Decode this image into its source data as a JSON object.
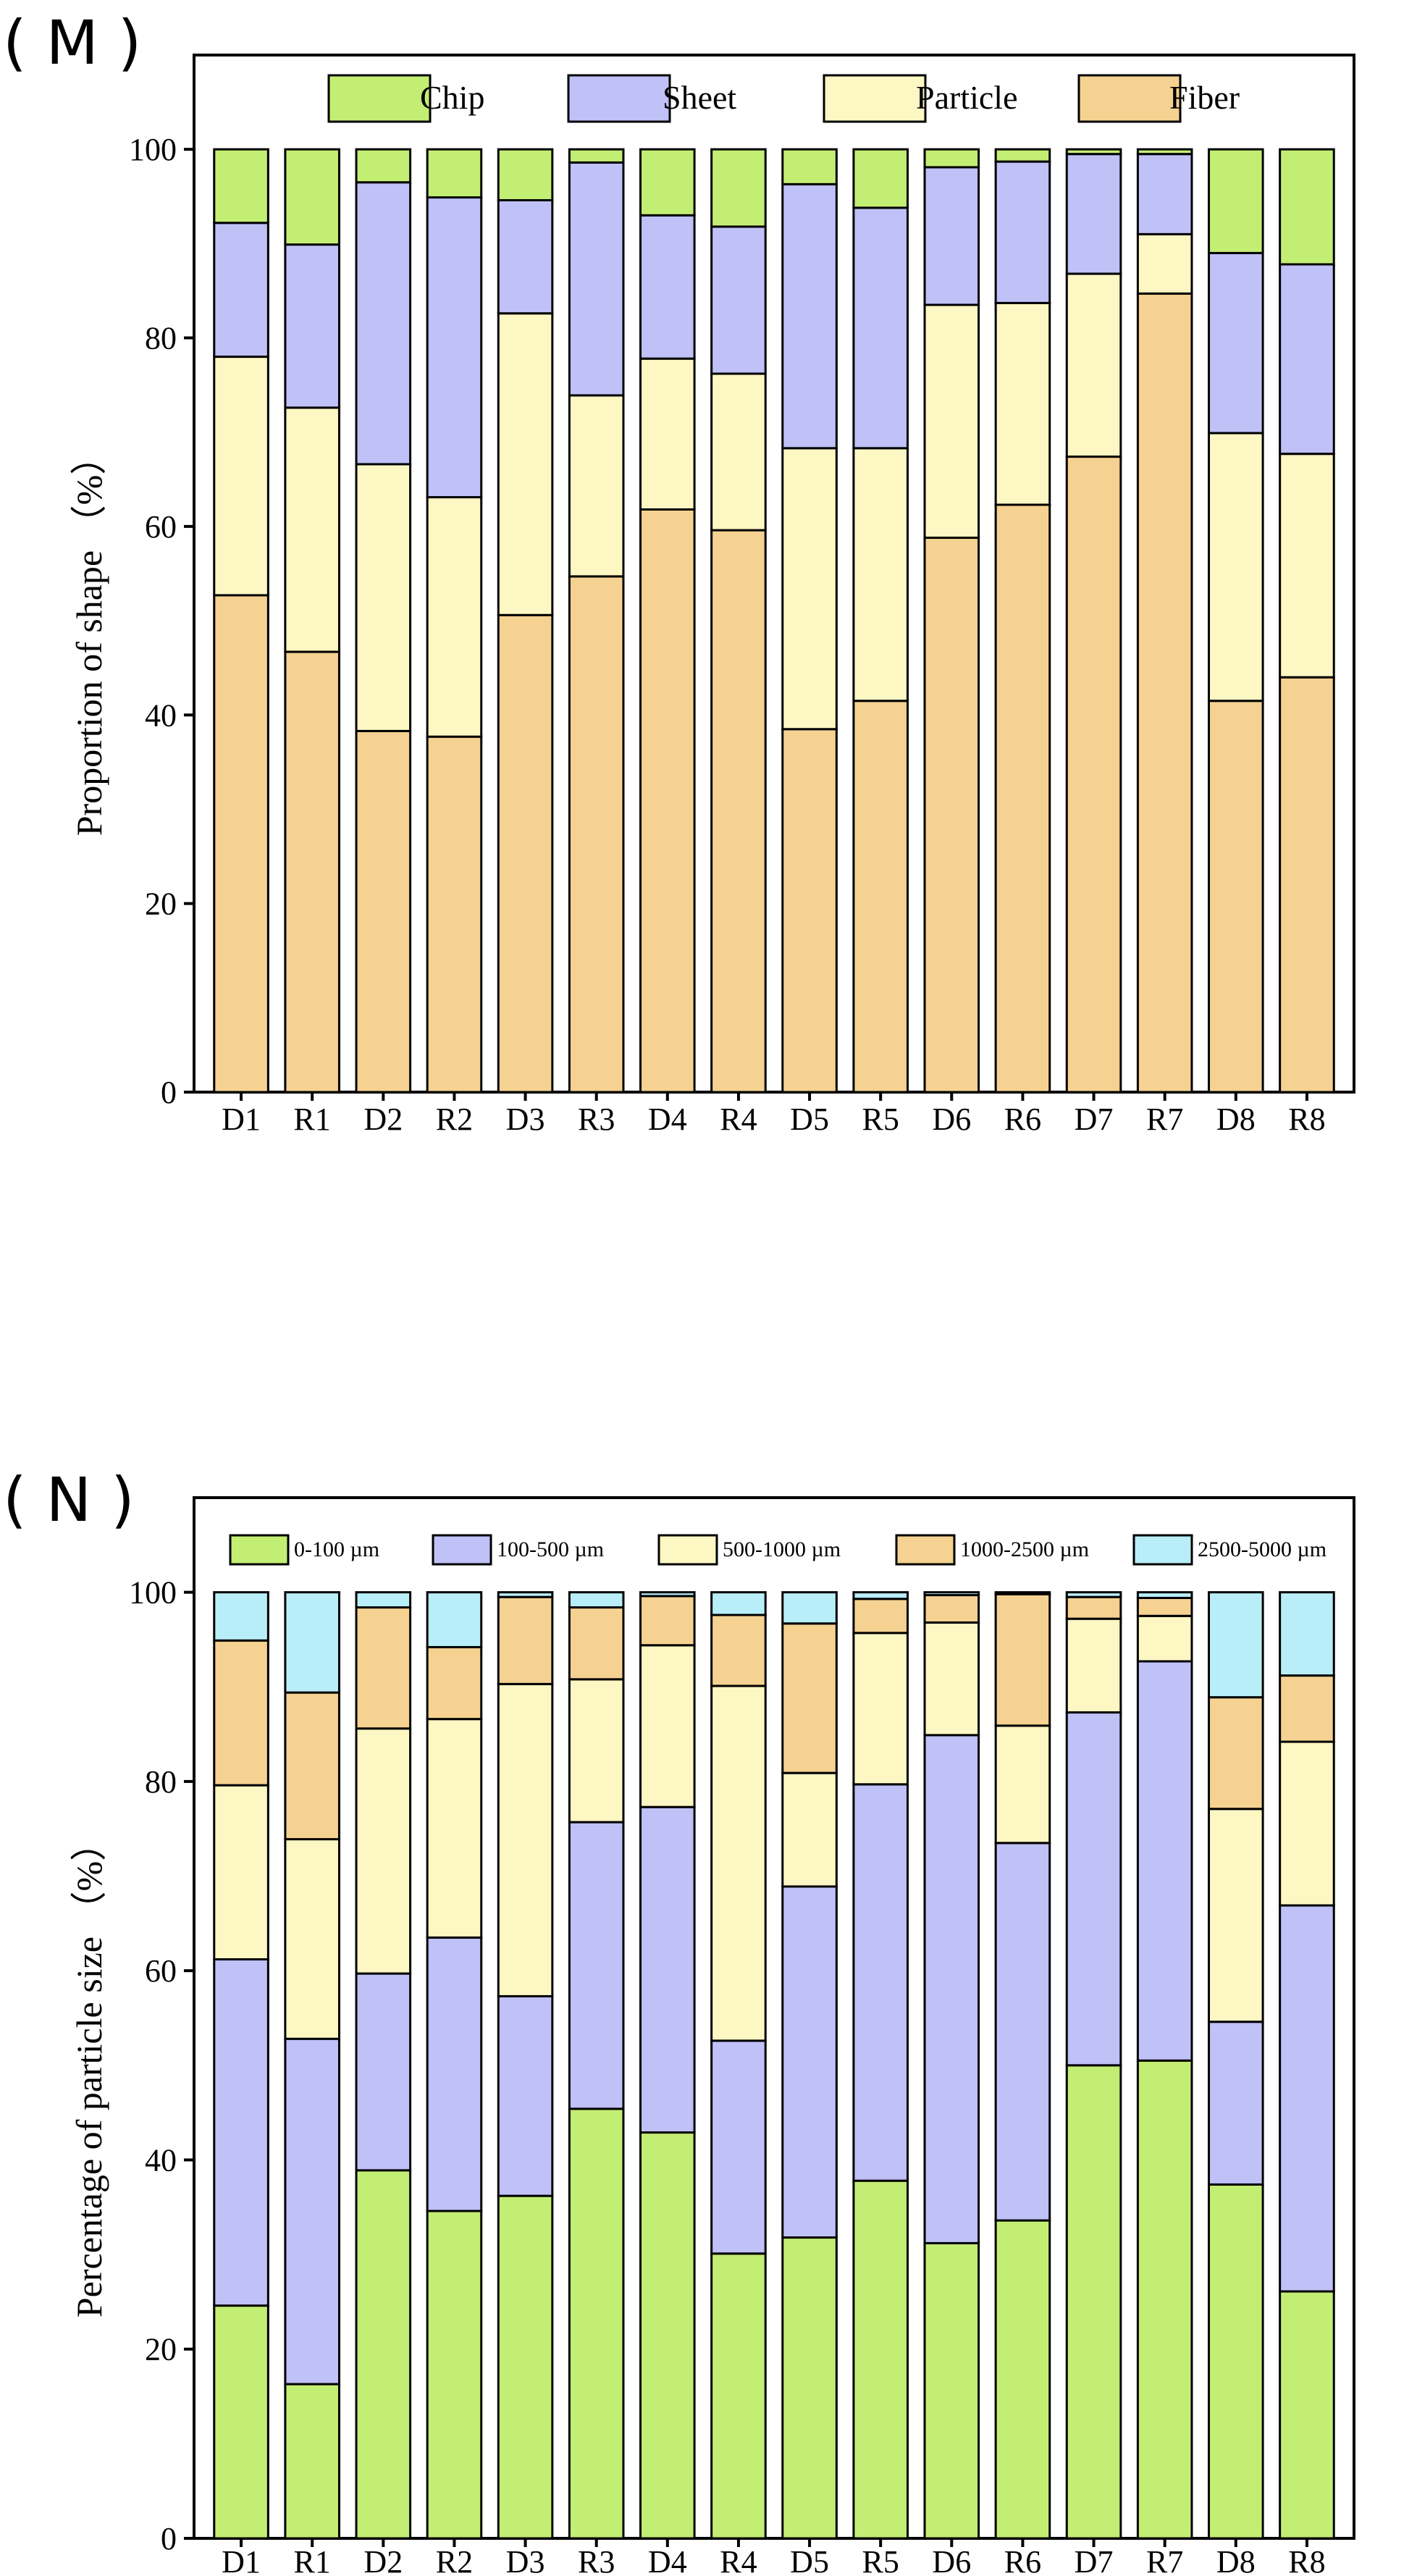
{
  "charts": [
    {
      "panel_label": "( M )",
      "chart_data": {
        "type": "bar",
        "stacked": true,
        "title": "",
        "xlabel": "",
        "ylabel": "Proportion of shape （%）",
        "ylim": [
          0,
          110
        ],
        "yticks": [
          0,
          20,
          40,
          60,
          80,
          100
        ],
        "ytick_labels": [
          "0",
          "20",
          "40",
          "60",
          "80",
          "100"
        ],
        "legend_position": "top",
        "categories": [
          "D1",
          "R1",
          "D2",
          "R2",
          "D3",
          "R3",
          "D4",
          "R4",
          "D5",
          "R5",
          "D6",
          "R6",
          "D7",
          "R7",
          "D8",
          "R8"
        ],
        "legend_order": [
          "Chip",
          "Sheet",
          "Particle",
          "Fiber"
        ],
        "series": [
          {
            "name": "Fiber",
            "color": "#F5D291",
            "values": [
              52.7,
              46.7,
              38.3,
              37.7,
              50.6,
              54.7,
              61.8,
              59.6,
              38.5,
              41.5,
              58.8,
              62.3,
              67.4,
              84.7,
              41.5,
              44.0
            ]
          },
          {
            "name": "Particle",
            "color": "#FDF7C4",
            "values": [
              25.3,
              25.9,
              28.3,
              25.4,
              32.0,
              19.2,
              16.0,
              16.6,
              29.8,
              26.8,
              24.7,
              21.4,
              19.4,
              6.3,
              28.4,
              23.7
            ]
          },
          {
            "name": "Sheet",
            "color": "#BFC1F7",
            "values": [
              14.2,
              17.3,
              29.9,
              31.8,
              12.0,
              24.7,
              15.2,
              15.6,
              28.0,
              25.5,
              14.6,
              15.0,
              12.7,
              8.5,
              19.1,
              20.1
            ]
          },
          {
            "name": "Chip",
            "color": "#C3EE74",
            "values": [
              7.8,
              10.1,
              3.5,
              5.1,
              5.4,
              1.4,
              7.0,
              8.2,
              3.7,
              6.2,
              1.9,
              1.3,
              0.5,
              0.5,
              11.0,
              12.2
            ]
          }
        ]
      }
    },
    {
      "panel_label": "( N )",
      "chart_data": {
        "type": "bar",
        "stacked": true,
        "title": "",
        "xlabel": "",
        "ylabel": "Percentage of particle size （%）",
        "ylim": [
          0,
          110
        ],
        "yticks": [
          0,
          20,
          40,
          60,
          80,
          100
        ],
        "ytick_labels": [
          "0",
          "20",
          "40",
          "60",
          "80",
          "100"
        ],
        "legend_position": "top",
        "categories": [
          "D1",
          "R1",
          "D2",
          "R2",
          "D3",
          "R3",
          "D4",
          "R4",
          "D5",
          "R5",
          "D6",
          "R6",
          "D7",
          "R7",
          "D8",
          "R8"
        ],
        "legend_order": [
          "0-100 µm",
          "100-500 µm",
          "500-1000 µm",
          "1000-2500 µm",
          "2500-5000 µm"
        ],
        "series": [
          {
            "name": "0-100 µm",
            "color": "#C3EE74",
            "values": [
              24.6,
              16.3,
              38.9,
              34.6,
              36.2,
              45.4,
              42.9,
              30.1,
              31.8,
              37.8,
              31.2,
              33.6,
              50.0,
              50.5,
              37.4,
              26.1
            ]
          },
          {
            "name": "100-500 µm",
            "color": "#BFC1F7",
            "values": [
              36.6,
              36.5,
              20.8,
              28.9,
              21.1,
              30.3,
              34.4,
              22.5,
              37.1,
              41.9,
              53.7,
              39.9,
              37.3,
              42.2,
              17.2,
              40.8
            ]
          },
          {
            "name": "500-1000 µm",
            "color": "#FDF7C4",
            "values": [
              18.4,
              21.1,
              25.9,
              23.1,
              33.0,
              15.1,
              17.1,
              37.5,
              12.0,
              16.0,
              11.9,
              12.4,
              9.9,
              4.8,
              22.5,
              17.3
            ]
          },
          {
            "name": "1000-2500 µm",
            "color": "#F5D291",
            "values": [
              15.3,
              15.5,
              12.8,
              7.6,
              9.2,
              7.6,
              5.2,
              7.5,
              15.8,
              3.6,
              2.9,
              13.9,
              2.3,
              1.9,
              11.8,
              7.0
            ]
          },
          {
            "name": "2500-5000 µm",
            "color": "#B8EEF8",
            "values": [
              5.1,
              10.6,
              1.6,
              5.8,
              0.5,
              1.6,
              0.4,
              2.4,
              3.3,
              0.7,
              0.3,
              0.2,
              0.5,
              0.6,
              11.1,
              8.8
            ]
          }
        ]
      }
    }
  ]
}
